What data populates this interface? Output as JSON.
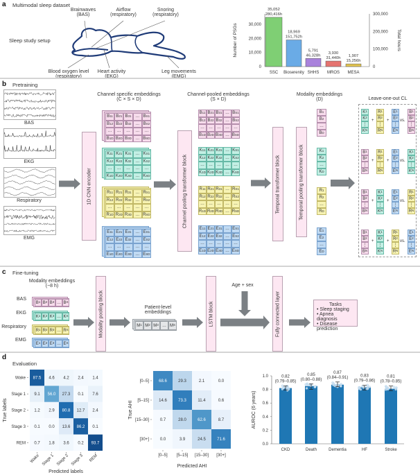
{
  "colors": {
    "B": {
      "fill": "#f7dcec",
      "border": "#b58fad"
    },
    "K": {
      "fill": "#c2efe4",
      "border": "#66b9a6"
    },
    "R": {
      "fill": "#f7f3b3",
      "border": "#c2b967"
    },
    "E": {
      "fill": "#c0daf3",
      "border": "#7aa3cf"
    },
    "M": {
      "fill": "#e4e6e8",
      "border": "#9aa0a5"
    },
    "block": "#fde7f2",
    "arrow": "#7b8084",
    "body_outline": "#1f3b78",
    "auroc_bar": "#1f77b4"
  },
  "panel_a": {
    "letter": "a",
    "title": "Multimodal sleep dataset",
    "setup_label": "Sleep study setup",
    "sensors": [
      {
        "name": "Brainwaves",
        "sub": "(BAS)"
      },
      {
        "name": "Airflow",
        "sub": "(respiratory)"
      },
      {
        "name": "Snoring",
        "sub": "(respiratory)"
      },
      {
        "name": "Blood oxygen level",
        "sub": "(respiratory)"
      },
      {
        "name": "Heart activity",
        "sub": "(EKG)"
      },
      {
        "name": "Leg movements",
        "sub": "(EMG)"
      }
    ]
  },
  "panel_b": {
    "letter": "b",
    "title": "Pretraining",
    "signals": [
      "BAS",
      "EKG",
      "Respiratory",
      "EMG"
    ],
    "cnn_encoder": "1D CNN encoder",
    "channel_specific_title": "Channel specific embeddings",
    "channel_specific_dims": "(C × S × D)",
    "channel_pooling_block": "Channel pooling transformer block",
    "channel_pooled_title": "Channel-pooled embeddings",
    "channel_pooled_dims": "(S × D)",
    "temporal_block": "Temporal transformer block",
    "temporal_pooling_block": "Temporal pooling transformer block",
    "modality_title": "Modality embeddings",
    "modality_dims": "(D)",
    "cl_title": "Leave-one-out CL",
    "modality_letters": [
      "B",
      "K",
      "R",
      "E"
    ],
    "grid_subscripts": [
      [
        "11",
        "21",
        "31",
        "…",
        "S1"
      ],
      [
        "12",
        "22",
        "32",
        "…",
        "S2"
      ],
      [
        "…",
        "…",
        "…",
        "…",
        "…"
      ],
      [
        "1D",
        "2D",
        "3D",
        "…",
        "SD"
      ]
    ],
    "modality_subscripts": [
      "1",
      "2",
      "…",
      "D"
    ],
    "cl_subscripts": [
      "1",
      "2",
      "⋮",
      "N"
    ],
    "cl_rows": [
      [
        "K",
        "R",
        "E",
        "B"
      ],
      [
        "B",
        "R",
        "E",
        "K"
      ],
      [
        "B",
        "K",
        "E",
        "R"
      ],
      [
        "B",
        "K",
        "R",
        "E"
      ]
    ],
    "cl_plus": "+",
    "cl_vs": "vs."
  },
  "panel_c": {
    "letter": "c",
    "title": "Fine-tuning",
    "modality_title": "Modality embeddings",
    "modality_duration": "(~8 h)",
    "rows": [
      {
        "label": "BAS",
        "letter": "B"
      },
      {
        "label": "EKG",
        "letter": "K"
      },
      {
        "label": "Respiratory",
        "letter": "R"
      },
      {
        "label": "EMG",
        "letter": "E"
      }
    ],
    "row_subscripts": [
      "1",
      "2",
      "3",
      "…",
      "S"
    ],
    "modality_pooling_block": "Modality pooling block",
    "patient_title_1": "Patient-level",
    "patient_title_2": "embeddings",
    "patient_letter": "M",
    "lstm_block": "LSTM block",
    "age_sex": "Age + sex",
    "fc_layer": "Fully connected layer",
    "tasks_title": "Tasks",
    "tasks": [
      "• Sleep staging",
      "• Apnea diagnosis",
      "• Disease prediction"
    ]
  },
  "panel_d": {
    "letter": "d",
    "title": "Evaluation"
  },
  "chart_data": [
    {
      "type": "bar",
      "categories": [
        "SSC",
        "Bioserenity",
        "SHHS",
        "MROS",
        "MESA"
      ],
      "values": [
        35052,
        18969,
        5791,
        3930,
        1907
      ],
      "hours": [
        280416,
        151752,
        46328,
        31440,
        15256
      ],
      "value_labels": [
        "35,052",
        "18,969",
        "5,791",
        "3,930",
        "1,907"
      ],
      "hour_labels": [
        "280,416h",
        "151,752h",
        "46,328h",
        "31,440h",
        "15,256h"
      ],
      "bar_colors": [
        "#7fcf74",
        "#6aabe6",
        "#a982dc",
        "#e5736f",
        "#e2c44f"
      ],
      "ylabel": "Number of PSGs",
      "ylabel_right": "Total hours",
      "ylim": [
        0,
        37500
      ],
      "ylim_right": [
        0,
        300000
      ],
      "yticks": [
        "0",
        "10,000",
        "20,000",
        "30,000"
      ],
      "yticks_right": [
        "0",
        "100,000",
        "200,000",
        "300,000"
      ],
      "grid": false
    },
    {
      "type": "heatmap",
      "rows": [
        "Wake",
        "Stage 1",
        "Stage 2",
        "Stage 3",
        "REM"
      ],
      "cols": [
        "Wake",
        "Stage 1",
        "Stage 2",
        "Stage 3",
        "REM"
      ],
      "values": [
        [
          87.5,
          4.6,
          4.2,
          2.4,
          1.4
        ],
        [
          9.1,
          56.0,
          27.3,
          0.1,
          7.6
        ],
        [
          1.2,
          2.9,
          80.8,
          12.7,
          2.4
        ],
        [
          0.1,
          0.0,
          13.6,
          86.2,
          0.1
        ],
        [
          0.7,
          1.8,
          3.6,
          0.2,
          93.7
        ]
      ],
      "ylabel": "True labels",
      "xlabel": "Predicted labels",
      "colormap": "Blues"
    },
    {
      "type": "heatmap",
      "rows": [
        "[0–5]",
        "[5–15]",
        "[15–30]",
        "[30+]"
      ],
      "cols": [
        "[0–5]",
        "[5–15]",
        "[15–30]",
        "[30+]"
      ],
      "values": [
        [
          68.6,
          29.3,
          2.1,
          0.0
        ],
        [
          14.6,
          73.3,
          11.4,
          0.6
        ],
        [
          0.7,
          28.0,
          62.6,
          8.7
        ],
        [
          0.0,
          3.9,
          24.5,
          71.6
        ]
      ],
      "ylabel": "True AHI",
      "xlabel": "Predicted AHI",
      "colormap": "Blues"
    },
    {
      "type": "bar",
      "categories": [
        "CKD",
        "Death",
        "Dementia",
        "HF",
        "Stroke"
      ],
      "values": [
        0.82,
        0.85,
        0.87,
        0.83,
        0.81
      ],
      "ci": [
        [
          0.79,
          0.85
        ],
        [
          0.8,
          0.88
        ],
        [
          0.84,
          0.91
        ],
        [
          0.79,
          0.86
        ],
        [
          0.78,
          0.85
        ]
      ],
      "value_labels": [
        "0.82",
        "0.85",
        "0.87",
        "0.83",
        "0.81"
      ],
      "ci_labels": [
        "(0.79–0.85)",
        "(0.80–0.88)",
        "(0.84–0.91)",
        "(0.79–0.86)",
        "(0.78–0.85)"
      ],
      "ylabel": "AUROC (6 years)",
      "ylim": [
        0,
        1.0
      ],
      "yticks": [
        "0.0",
        "0.2",
        "0.4",
        "0.6",
        "0.8",
        "1.0"
      ],
      "grid": false
    }
  ]
}
